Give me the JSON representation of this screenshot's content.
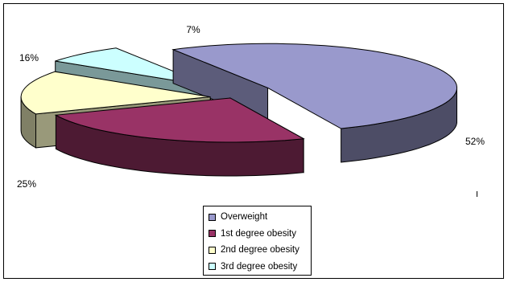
{
  "chart_data": {
    "type": "pie",
    "categories": [
      "Overweight",
      "1st degree obesity",
      "2nd degree obesity",
      "3rd degree obesity"
    ],
    "values": [
      52,
      25,
      16,
      7
    ],
    "value_labels": [
      "52%",
      "25%",
      "16%",
      "7%"
    ],
    "colors": [
      "#9999cc",
      "#993366",
      "#ffffcc",
      "#ccffff"
    ],
    "exploded": true,
    "three_d": true,
    "legend_position": "bottom-center",
    "title": ""
  }
}
